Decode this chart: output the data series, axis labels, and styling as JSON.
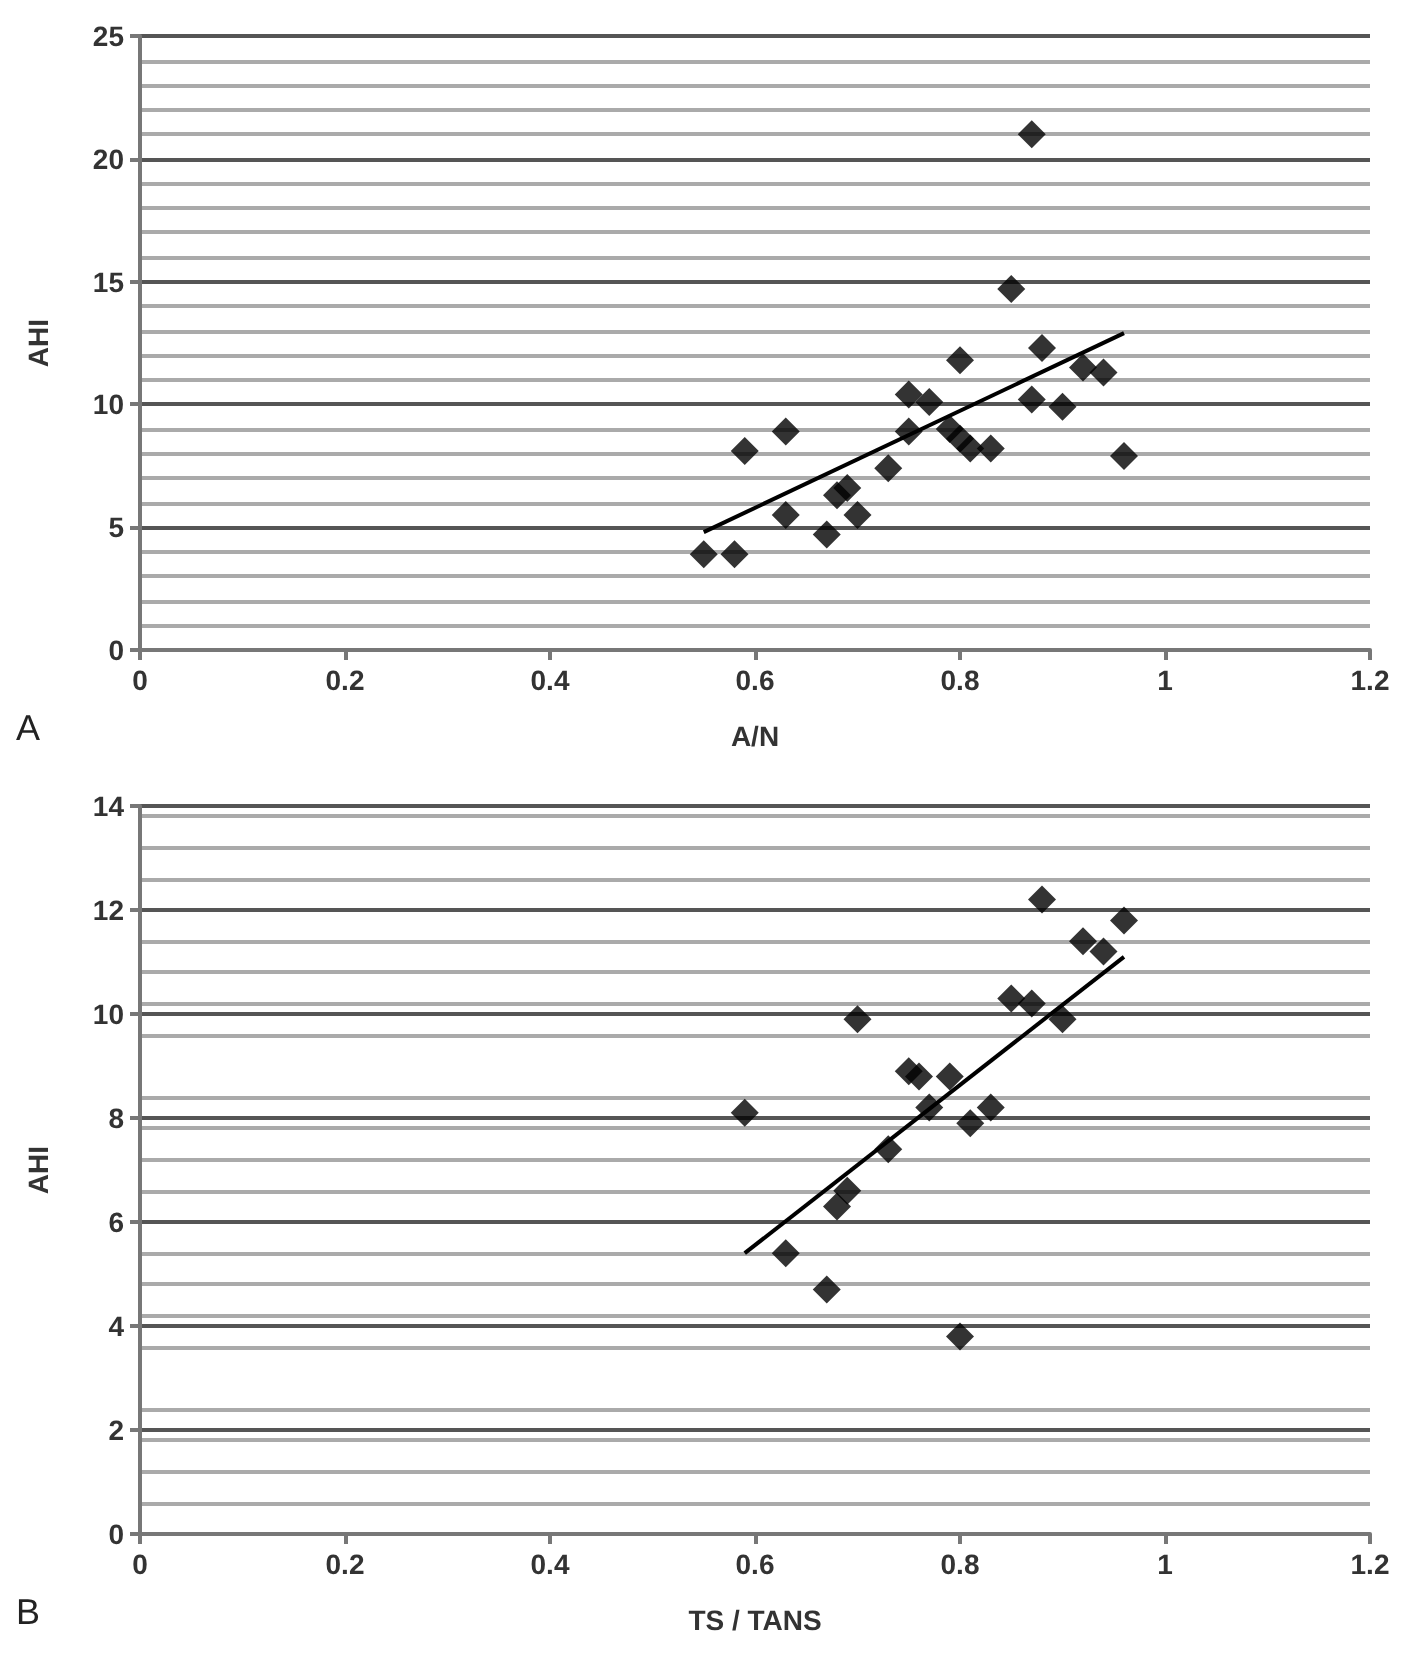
{
  "chart_data": [
    {
      "type": "scatter",
      "xlabel": "A/N",
      "ylabel": "AHI",
      "annotations": [
        "A"
      ],
      "xlim": [
        0,
        1.2
      ],
      "xticks": [
        0,
        0.2,
        0.4,
        0.6,
        0.8,
        1,
        1.2
      ],
      "ylim": [
        0,
        25
      ],
      "yticks": [
        0,
        5,
        10,
        15,
        20,
        25
      ],
      "grid": "y",
      "marker": "diamond",
      "series": [
        {
          "color": "#000000",
          "x": [
            0.55,
            0.58,
            0.59,
            0.63,
            0.63,
            0.67,
            0.68,
            0.69,
            0.7,
            0.73,
            0.75,
            0.75,
            0.77,
            0.79,
            0.8,
            0.8,
            0.81,
            0.83,
            0.85,
            0.87,
            0.87,
            0.88,
            0.9,
            0.92,
            0.94,
            0.96
          ],
          "values": [
            3.9,
            3.9,
            8.1,
            8.9,
            5.5,
            4.7,
            6.3,
            6.6,
            5.5,
            7.4,
            10.4,
            8.9,
            10.1,
            9.0,
            11.8,
            8.6,
            8.2,
            8.2,
            14.7,
            21.0,
            10.2,
            12.3,
            9.9,
            11.5,
            11.3,
            7.9
          ]
        },
        {
          "type": "line",
          "marker": "none",
          "color": "#000000",
          "x": [
            0.55,
            0.96
          ],
          "values": [
            4.8,
            12.9
          ]
        }
      ]
    },
    {
      "type": "scatter",
      "xlabel": "TS / TANS",
      "ylabel": "AHI",
      "annotations": [
        "B"
      ],
      "xlim": [
        0,
        1.2
      ],
      "xticks": [
        0,
        0.2,
        0.4,
        0.6,
        0.8,
        1,
        1.2
      ],
      "ylim": [
        0,
        14
      ],
      "yticks": [
        0,
        2,
        4,
        6,
        8,
        10,
        12,
        14
      ],
      "grid": "y",
      "marker": "diamond",
      "series": [
        {
          "color": "#000000",
          "x": [
            0.59,
            0.63,
            0.67,
            0.68,
            0.69,
            0.7,
            0.73,
            0.75,
            0.76,
            0.77,
            0.79,
            0.8,
            0.81,
            0.83,
            0.85,
            0.87,
            0.88,
            0.9,
            0.92,
            0.94,
            0.96
          ],
          "values": [
            8.1,
            5.4,
            4.7,
            6.3,
            6.6,
            9.9,
            7.4,
            8.9,
            8.8,
            8.2,
            8.8,
            3.8,
            7.9,
            8.2,
            10.3,
            10.2,
            12.2,
            9.9,
            11.4,
            11.2,
            11.8
          ]
        },
        {
          "type": "line",
          "marker": "none",
          "color": "#000000",
          "x": [
            0.59,
            0.96
          ],
          "values": [
            5.4,
            11.1
          ]
        }
      ]
    }
  ]
}
